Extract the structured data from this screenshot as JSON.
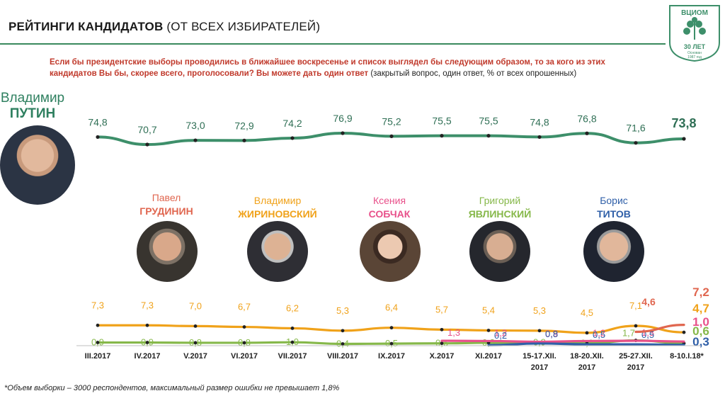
{
  "header": {
    "title_bold": "РЕЙТИНГИ КАНДИДАТОВ",
    "title_rest": "(ОТ ВСЕХ ИЗБИРАТЕЛЕЙ)"
  },
  "question": {
    "red_line1": "Если бы президентские выборы проводились в ближайшее воскресенье и список выглядел бы следующим образом, то за кого из этих",
    "red_line2": "кандидатов Вы бы, скорее всего, проголосовали? Вы можете дать один ответ",
    "note": " (закрытый вопрос, один ответ, % от всех опрошенных)"
  },
  "logo": {
    "name": "ВЦИОМ",
    "years": "30 ЛЕТ",
    "founded": "Основан",
    "year": "1987 год"
  },
  "putin": {
    "first_name": "Владимир",
    "last_name": "ПУТИН"
  },
  "candidates": [
    {
      "first_name": "Павел",
      "last_name": "ГРУДИНИН",
      "color": "#e0664f"
    },
    {
      "first_name": "Владимир",
      "last_name": "ЖИРИНОВСКИЙ",
      "color": "#f0a21a"
    },
    {
      "first_name": "Ксения",
      "last_name": "СОБЧАК",
      "color": "#e8508a"
    },
    {
      "first_name": "Григорий",
      "last_name": "ЯВЛИНСКИЙ",
      "color": "#86b84a"
    },
    {
      "first_name": "Борис",
      "last_name": "ТИТОВ",
      "color": "#2f5fa8"
    }
  ],
  "footnote": "*Объем выборки – 3000 респондентов, максимальный размер ошибки не превышает 1,8%",
  "chart_data": [
    {
      "type": "line",
      "categories": [
        "III.2017",
        "IV.2017",
        "V.2017",
        "VI.2017",
        "VII.2017",
        "VIII.2017",
        "IX.2017",
        "X.2017",
        "XI.2017",
        "15-17.XII.2017",
        "18-20.XII.2017",
        "25-27.XII.2017",
        "8-10.I.18*"
      ],
      "series": [
        {
          "name": "Владимир ПУТИН",
          "color": "#3d8f6a",
          "values": [
            74.8,
            70.7,
            73.0,
            72.9,
            74.2,
            76.9,
            75.2,
            75.5,
            75.5,
            74.8,
            76.8,
            71.6,
            73.8
          ],
          "labels": [
            "74,8",
            "70,7",
            "73,0",
            "72,9",
            "74,2",
            "76,9",
            "75,2",
            "75,5",
            "75,5",
            "74,8",
            "76,8",
            "71,6",
            "73,8"
          ]
        }
      ]
    },
    {
      "type": "line",
      "category_labels": [
        "III.2017",
        "IV.2017",
        "V.2017",
        "VI.2017",
        "VII.2017",
        "VIII.2017",
        "IX.2017",
        "X.2017",
        "XI.2017",
        "15-17.XII.\n2017",
        "18-20.XII.\n2017",
        "25-27.XII.\n2017",
        "8-10.I.18*"
      ],
      "series": [
        {
          "name": "Владимир ЖИРИНОВСКИЙ",
          "color": "#f0a21a",
          "values": [
            7.3,
            7.3,
            7.0,
            6.7,
            6.2,
            5.3,
            6.4,
            5.7,
            5.4,
            5.3,
            4.5,
            7.1,
            4.7
          ],
          "labels": [
            "7,3",
            "7,3",
            "7,0",
            "6,7",
            "6,2",
            "5,3",
            "6,4",
            "5,7",
            "5,4",
            "5,3",
            "4,5",
            "7,1",
            "4,7"
          ]
        },
        {
          "name": "Григорий ЯВЛИНСКИЙ",
          "color": "#86b84a",
          "values": [
            0.9,
            0.9,
            0.8,
            0.8,
            1.0,
            0.4,
            0.5,
            0.6,
            0.8,
            0.9,
            0.6,
            1.7,
            0.6
          ],
          "labels": [
            "0,9",
            "0,9",
            "0,8",
            "0,8",
            "1,0",
            "0,4",
            "0,5",
            "0,6",
            "0,8",
            "0,9",
            "0,6",
            "1,7",
            "0,6"
          ]
        },
        {
          "name": "Ксения СОБЧАК",
          "color": "#e8508a",
          "values": [
            null,
            null,
            null,
            null,
            null,
            null,
            null,
            1.3,
            1.2,
            0.9,
            1.2,
            1.3,
            1.0
          ],
          "labels": [
            "",
            "",
            "",
            "",
            "",
            "",
            "",
            "1,3",
            "1,2",
            "0,9",
            "1,2",
            "1,3",
            "1,0"
          ]
        },
        {
          "name": "Борис ТИТОВ",
          "color": "#2f5fa8",
          "values": [
            null,
            null,
            null,
            null,
            null,
            null,
            null,
            null,
            0.2,
            0.8,
            0.5,
            0.5,
            0.3
          ],
          "labels": [
            "",
            "",
            "",
            "",
            "",
            "",
            "",
            "",
            "0,2",
            "0,8",
            "0,5",
            "0,5",
            "0,3"
          ]
        },
        {
          "name": "Павел ГРУДИНИН",
          "color": "#e0664f",
          "values": [
            null,
            null,
            null,
            null,
            null,
            null,
            null,
            null,
            null,
            null,
            null,
            4.6,
            7.2
          ],
          "labels": [
            "",
            "",
            "",
            "",
            "",
            "",
            "",
            "",
            "",
            "",
            "",
            "4,6",
            "7,2"
          ]
        }
      ]
    }
  ]
}
